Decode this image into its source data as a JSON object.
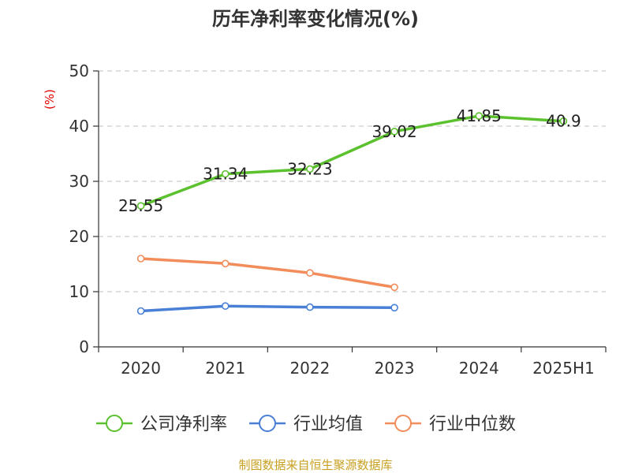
{
  "chart_data": {
    "type": "line",
    "title": "历年净利率变化情况(%)",
    "ylabel": "(%)",
    "xlabel": "",
    "categories": [
      "2020",
      "2021",
      "2022",
      "2023",
      "2024",
      "2025H1"
    ],
    "ylim": [
      0,
      50
    ],
    "yticks": [
      "0",
      "10",
      "20",
      "30",
      "40",
      "50"
    ],
    "grid": true,
    "legend_position": "bottom",
    "series": [
      {
        "name": "公司净利率",
        "color": "#5cc12e",
        "values": [
          25.55,
          31.34,
          32.23,
          39.02,
          41.85,
          40.9
        ],
        "labels": [
          "25.55",
          "31.34",
          "32.23",
          "39.02",
          "41.85",
          "40.9"
        ]
      },
      {
        "name": "行业均值",
        "color": "#4a7fd6",
        "values": [
          6.5,
          7.4,
          7.2,
          7.1,
          null,
          null
        ]
      },
      {
        "name": "行业中位数",
        "color": "#f28c5a",
        "values": [
          16.0,
          15.1,
          13.4,
          10.8,
          null,
          null
        ]
      }
    ]
  },
  "source": "制图数据来自恒生聚源数据库"
}
